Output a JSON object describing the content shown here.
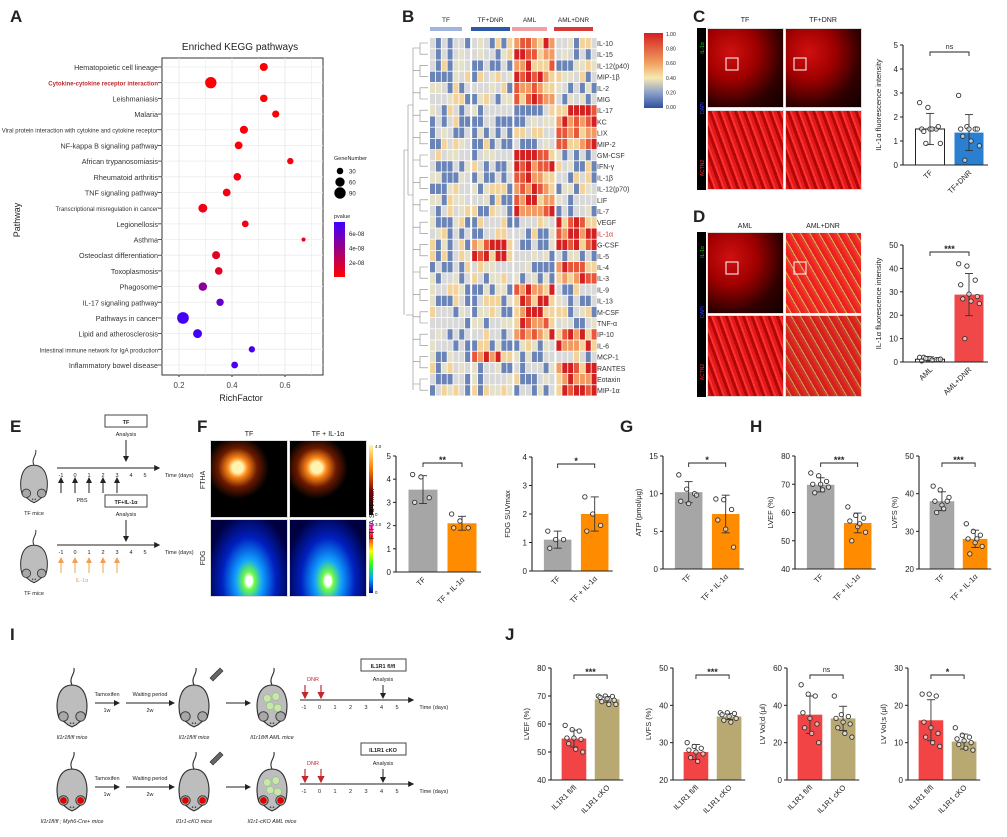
{
  "panel_labels": [
    "A",
    "B",
    "C",
    "D",
    "E",
    "F",
    "G",
    "H",
    "I",
    "J"
  ],
  "chart_data": [
    {
      "id": "A",
      "type": "scatter",
      "title": "Enriched KEGG pathways",
      "xlabel": "RichFactor",
      "ylabel": "Pathway",
      "xlim": [
        0.15,
        0.75
      ],
      "xticks": [
        "0.2",
        "0.4",
        "0.6"
      ],
      "grid": true,
      "highlight_color": "#c0282d",
      "size_legend": {
        "title": "GeneNumber",
        "values": [
          "30",
          "60",
          "90"
        ]
      },
      "color_legend": {
        "title": "pvalue",
        "ticks": [
          "6e-08",
          "4e-08",
          "2e-08"
        ],
        "low_color": "#ff0000",
        "high_color": "#3c00ff"
      },
      "legend_placement": "right",
      "points": [
        {
          "pathway": "Hematopoietic cell lineage",
          "rich": 0.52,
          "genes": 45,
          "p": 1e-09
        },
        {
          "pathway": "Cytokine-cytokine receptor interaction",
          "rich": 0.32,
          "genes": 90,
          "p": 1e-09,
          "highlight": true
        },
        {
          "pathway": "Leishmaniasis",
          "rich": 0.52,
          "genes": 40,
          "p": 1e-09
        },
        {
          "pathway": "Malaria",
          "rich": 0.565,
          "genes": 36,
          "p": 2e-09
        },
        {
          "pathway": "Viral protein interaction with cytokine and cytokine receptor",
          "rich": 0.445,
          "genes": 45,
          "p": 2e-09
        },
        {
          "pathway": "NF-kappa B signaling pathway",
          "rich": 0.425,
          "genes": 42,
          "p": 2e-09
        },
        {
          "pathway": "African trypanosomiasis",
          "rich": 0.62,
          "genes": 28,
          "p": 4e-09
        },
        {
          "pathway": "Rheumatoid arthritis",
          "rich": 0.42,
          "genes": 40,
          "p": 4e-09
        },
        {
          "pathway": "TNF signaling pathway",
          "rich": 0.38,
          "genes": 42,
          "p": 5e-09
        },
        {
          "pathway": "Transcriptional misregulation in cancer",
          "rich": 0.29,
          "genes": 55,
          "p": 6e-09
        },
        {
          "pathway": "Legionellosis",
          "rich": 0.45,
          "genes": 32,
          "p": 6e-09
        },
        {
          "pathway": "Asthma",
          "rich": 0.67,
          "genes": 12,
          "p": 8e-09
        },
        {
          "pathway": "Osteoclast differentiation",
          "rich": 0.34,
          "genes": 45,
          "p": 1e-08
        },
        {
          "pathway": "Toxoplasmosis",
          "rich": 0.35,
          "genes": 40,
          "p": 1.2e-08
        },
        {
          "pathway": "Phagosome",
          "rich": 0.29,
          "genes": 50,
          "p": 4.5e-08
        },
        {
          "pathway": "IL-17 signaling pathway",
          "rich": 0.355,
          "genes": 38,
          "p": 6e-08
        },
        {
          "pathway": "Pathways in cancer",
          "rich": 0.215,
          "genes": 95,
          "p": 7.2e-08
        },
        {
          "pathway": "Lipid and atherosclerosis",
          "rich": 0.27,
          "genes": 55,
          "p": 7.2e-08
        },
        {
          "pathway": "Intestinal immune network for IgA production",
          "rich": 0.475,
          "genes": 28,
          "p": 7.2e-08
        },
        {
          "pathway": "Inflammatory bowel disease",
          "rich": 0.41,
          "genes": 32,
          "p": 7e-08
        }
      ]
    },
    {
      "id": "B",
      "type": "heatmap",
      "groups": [
        {
          "name": "TF",
          "color": "#9fb4de"
        },
        {
          "name": "TF+DNR",
          "color": "#2e58a8"
        },
        {
          "name": "AML",
          "color": "#eea0a0"
        },
        {
          "name": "AML+DNR",
          "color": "#d83a3a"
        }
      ],
      "colorbar_ticks": [
        "1.00",
        "0.80",
        "0.60",
        "0.40",
        "0.20",
        "0.00"
      ],
      "highlight_row": "IL-1α",
      "highlight_color": "#d03030",
      "rows": [
        {
          "name": "IL-10",
          "elevated_in": [
            "AML"
          ]
        },
        {
          "name": "IL-15",
          "elevated_in": [
            "AML"
          ]
        },
        {
          "name": "IL-12(p40)",
          "elevated_in": [
            "AML"
          ]
        },
        {
          "name": "MIP-1β",
          "elevated_in": [
            "AML"
          ]
        },
        {
          "name": "IL-2",
          "elevated_in": [
            "AML"
          ]
        },
        {
          "name": "MIG",
          "elevated_in": [
            "AML"
          ]
        },
        {
          "name": "IL-17",
          "elevated_in": [
            "AML+DNR"
          ]
        },
        {
          "name": "KC",
          "elevated_in": [
            "AML+DNR"
          ]
        },
        {
          "name": "LIX",
          "elevated_in": [
            "AML+DNR"
          ]
        },
        {
          "name": "MIP-2",
          "elevated_in": [
            "AML+DNR"
          ]
        },
        {
          "name": "GM-CSF",
          "elevated_in": [
            "AML"
          ]
        },
        {
          "name": "IFN-γ",
          "elevated_in": [
            "AML"
          ]
        },
        {
          "name": "IL-1β",
          "elevated_in": [
            "AML"
          ]
        },
        {
          "name": "IL-12(p70)",
          "elevated_in": [
            "AML"
          ]
        },
        {
          "name": "LIF",
          "elevated_in": [
            "AML"
          ]
        },
        {
          "name": "IL-7",
          "elevated_in": [
            "AML"
          ]
        },
        {
          "name": "VEGF",
          "elevated_in": [
            "AML+DNR"
          ]
        },
        {
          "name": "IL-1α",
          "elevated_in": [
            "AML+DNR"
          ]
        },
        {
          "name": "G-CSF",
          "elevated_in": [
            "TF+DNR",
            "AML+DNR"
          ]
        },
        {
          "name": "IL-5",
          "elevated_in": [
            "TF+DNR"
          ]
        },
        {
          "name": "IL-4",
          "elevated_in": [
            "AML+DNR"
          ]
        },
        {
          "name": "IL-3",
          "elevated_in": [
            "AML+DNR"
          ]
        },
        {
          "name": "IL-9",
          "elevated_in": [
            "AML"
          ]
        },
        {
          "name": "IL-13",
          "elevated_in": [
            "AML"
          ]
        },
        {
          "name": "M-CSF",
          "elevated_in": [
            "AML"
          ]
        },
        {
          "name": "TNF-α",
          "elevated_in": [
            "AML"
          ]
        },
        {
          "name": "IP-10",
          "elevated_in": [
            "AML",
            "AML+DNR"
          ]
        },
        {
          "name": "IL-6",
          "elevated_in": [
            "AML+DNR"
          ]
        },
        {
          "name": "MCP-1",
          "elevated_in": [
            "TF+DNR"
          ]
        },
        {
          "name": "RANTES",
          "elevated_in": [
            "AML+DNR"
          ]
        },
        {
          "name": "Eotaxin",
          "elevated_in": [
            "AML+DNR"
          ]
        },
        {
          "name": "MIP-1α",
          "elevated_in": [
            "AML+DNR"
          ]
        }
      ]
    },
    {
      "id": "C",
      "type": "bar",
      "ylabel": "IL-1α fluorescence intensity",
      "ylim": [
        0,
        5
      ],
      "yticks": [
        "0",
        "1",
        "2",
        "3",
        "4",
        "5"
      ],
      "sig": "ns",
      "categories": [
        "TF",
        "TF+DNR"
      ],
      "bars": [
        {
          "mean": 1.5,
          "sd": 0.65,
          "color": "#ffffff",
          "points": [
            2.6,
            2.4,
            1.5,
            1.5,
            1.5,
            1.6,
            1.4,
            1.5,
            0.9,
            0.9
          ]
        },
        {
          "mean": 1.35,
          "sd": 0.75,
          "color": "#2a7fd0",
          "points": [
            2.9,
            1.6,
            1.5,
            1.5,
            1.5,
            1.5,
            1.2,
            1.0,
            0.8,
            0.2
          ]
        }
      ]
    },
    {
      "id": "D",
      "type": "bar",
      "ylabel": "IL-1α fluorescence intensity",
      "ylim": [
        0,
        50
      ],
      "yticks": [
        "0",
        "10",
        "20",
        "30",
        "40",
        "50"
      ],
      "sig": "***",
      "categories": [
        "AML",
        "AML+DNR"
      ],
      "bars": [
        {
          "mean": 1.2,
          "sd": 1.0,
          "color": "#ffffff",
          "points": [
            2,
            1.5,
            1,
            0.5,
            1.5,
            1,
            2,
            0.8,
            1.2,
            1.5
          ]
        },
        {
          "mean": 28.8,
          "sd": 9,
          "color": "#f04848",
          "points": [
            42,
            41,
            35,
            33,
            29,
            28,
            27,
            26,
            25,
            10
          ]
        }
      ]
    },
    {
      "id": "F1",
      "type": "bar",
      "ylabel": "FTHA SUVmax",
      "ylim": [
        0,
        5
      ],
      "yticks": [
        "0",
        "1",
        "2",
        "3",
        "4",
        "5"
      ],
      "sig": "**",
      "categories": [
        "TF",
        "TF + IL-1α"
      ],
      "bars": [
        {
          "mean": 3.55,
          "sd": 0.6,
          "color": "#a6a6a6",
          "points": [
            4.2,
            4.1,
            3.2,
            3.0
          ]
        },
        {
          "mean": 2.1,
          "sd": 0.3,
          "color": "#ff8c00",
          "points": [
            2.5,
            2.2,
            1.9,
            1.9
          ]
        }
      ]
    },
    {
      "id": "F2",
      "type": "bar",
      "ylabel": "FDG SUVmax",
      "ylim": [
        0,
        4
      ],
      "yticks": [
        "0",
        "1",
        "2",
        "3",
        "4"
      ],
      "sig": "*",
      "categories": [
        "TF",
        "TF + IL-1α"
      ],
      "bars": [
        {
          "mean": 1.1,
          "sd": 0.3,
          "color": "#a6a6a6",
          "points": [
            1.4,
            1.1,
            1.1,
            0.8
          ]
        },
        {
          "mean": 2.0,
          "sd": 0.6,
          "color": "#ff8c00",
          "points": [
            2.6,
            2.0,
            1.6,
            1.4
          ]
        }
      ]
    },
    {
      "id": "G",
      "type": "bar",
      "ylabel": "ATP (pmol/μg)",
      "ylim": [
        0,
        15
      ],
      "yticks": [
        "0",
        "5",
        "10",
        "15"
      ],
      "sig": "*",
      "categories": [
        "TF",
        "TF + IL-1α"
      ],
      "bars": [
        {
          "mean": 10.2,
          "sd": 1.4,
          "color": "#a6a6a6",
          "points": [
            12.5,
            10.6,
            10.0,
            9.0,
            8.7,
            9.8
          ]
        },
        {
          "mean": 7.3,
          "sd": 2.5,
          "color": "#ff8c00",
          "points": [
            9.3,
            9.2,
            7.9,
            6.5,
            5.3,
            2.9
          ]
        }
      ]
    },
    {
      "id": "H1",
      "type": "bar",
      "ylabel": "LVEF (%)",
      "ylim": [
        40,
        80
      ],
      "yticks": [
        "40",
        "50",
        "60",
        "70",
        "80"
      ],
      "sig": "***",
      "categories": [
        "TF",
        "TF + IL-1α"
      ],
      "bars": [
        {
          "mean": 69.8,
          "sd": 2.5,
          "color": "#a6a6a6",
          "points": [
            74,
            73,
            71,
            70,
            70,
            69,
            67,
            68
          ]
        },
        {
          "mean": 56.3,
          "sd": 3.5,
          "color": "#ff8c00",
          "points": [
            62,
            59,
            58,
            57,
            55,
            53,
            50,
            56
          ]
        }
      ]
    },
    {
      "id": "H2",
      "type": "bar",
      "ylabel": "LVFS (%)",
      "ylim": [
        20,
        50
      ],
      "yticks": [
        "20",
        "30",
        "40",
        "50"
      ],
      "sig": "***",
      "categories": [
        "TF",
        "TF + IL-1α"
      ],
      "bars": [
        {
          "mean": 38,
          "sd": 2.5,
          "color": "#a6a6a6",
          "points": [
            42,
            41,
            38,
            38,
            37,
            39,
            35,
            36
          ]
        },
        {
          "mean": 28,
          "sd": 2.3,
          "color": "#ff8c00",
          "points": [
            32,
            30,
            29,
            28,
            27,
            26,
            24,
            28
          ]
        }
      ]
    },
    {
      "id": "J1",
      "type": "bar",
      "ylabel": "LVEF (%)",
      "ylim": [
        40,
        80
      ],
      "yticks": [
        "40",
        "50",
        "60",
        "70",
        "80"
      ],
      "sig": "***",
      "categories": [
        "IL1R1 fl/fl",
        "IL1R1 cKO"
      ],
      "bars": [
        {
          "mean": 54.8,
          "sd": 3,
          "color": "#f24444",
          "points": [
            59.5,
            58,
            57.5,
            55,
            55,
            54.5,
            53,
            51,
            50
          ]
        },
        {
          "mean": 68.8,
          "sd": 1,
          "color": "#b8a872",
          "points": [
            70,
            70,
            69.8,
            69.5,
            69,
            68.5,
            68,
            67,
            67
          ]
        }
      ]
    },
    {
      "id": "J2",
      "type": "bar",
      "ylabel": "LVFS (%)",
      "ylim": [
        20,
        50
      ],
      "yticks": [
        "20",
        "30",
        "40",
        "50"
      ],
      "sig": "***",
      "categories": [
        "IL1R1 fl/fl",
        "IL1R1 cKO"
      ],
      "bars": [
        {
          "mean": 27.5,
          "sd": 2,
          "color": "#f24444",
          "points": [
            30,
            29,
            28.5,
            28,
            27.5,
            27,
            26,
            25
          ]
        },
        {
          "mean": 37,
          "sd": 0.8,
          "color": "#b8a872",
          "points": [
            38,
            38,
            37.8,
            37.5,
            37,
            36.5,
            36,
            35.5
          ]
        }
      ]
    },
    {
      "id": "J3",
      "type": "bar",
      "ylabel": "LV Vol;d (μl)",
      "ylim": [
        0,
        60
      ],
      "yticks": [
        "0",
        "20",
        "40",
        "60"
      ],
      "sig": "ns",
      "categories": [
        "IL1R1 fl/fl",
        "IL1R1 cKO"
      ],
      "bars": [
        {
          "mean": 35,
          "sd": 10,
          "color": "#f24444",
          "points": [
            51,
            46,
            45,
            36,
            33,
            30,
            28,
            25,
            20
          ]
        },
        {
          "mean": 33,
          "sd": 6.5,
          "color": "#b8a872",
          "points": [
            45,
            35,
            34,
            33,
            31,
            30,
            28,
            25,
            23
          ]
        }
      ]
    },
    {
      "id": "J4",
      "type": "bar",
      "ylabel": "LV Vol;s (μl)",
      "ylim": [
        0,
        30
      ],
      "yticks": [
        "0",
        "10",
        "20",
        "30"
      ],
      "sig": "*",
      "categories": [
        "IL1R1 fl/fl",
        "IL1R1 cKO"
      ],
      "bars": [
        {
          "mean": 16,
          "sd": 5.5,
          "color": "#f24444",
          "points": [
            23,
            23,
            22.5,
            15.5,
            14,
            12.5,
            11.5,
            10,
            9
          ]
        },
        {
          "mean": 10.3,
          "sd": 2,
          "color": "#b8a872",
          "points": [
            14,
            12,
            11.5,
            11,
            10.5,
            10,
            9.5,
            8.5,
            8
          ]
        }
      ]
    }
  ],
  "panel_c": {
    "images": [
      "TF",
      "TF+DNR"
    ],
    "stains": [
      "IL-1α",
      "DAPI",
      "ACTN2"
    ]
  },
  "panel_d": {
    "images": [
      "AML",
      "AML+DNR"
    ],
    "stains": [
      "IL-1α",
      "DAPI",
      "ACTN2"
    ]
  },
  "panel_e": {
    "mouse_label": "TF mice",
    "analysis": "Analysis",
    "time_label": "Time (days)",
    "days": [
      "-1",
      "0",
      "1",
      "2",
      "3",
      "4",
      "5"
    ],
    "rows": [
      {
        "box": "TF",
        "injection": "PBS",
        "color": "#222222"
      },
      {
        "box": "TF+IL-1α",
        "injection": "IL-1α",
        "color": "#f0a050"
      }
    ]
  },
  "panel_f": {
    "columns": [
      "TF",
      "TF + IL-1α"
    ],
    "rows": [
      "FTHA",
      "FDG"
    ],
    "scales": [
      {
        "max": "4.0",
        "min": "0"
      },
      {
        "max": "3.0",
        "min": "0"
      }
    ]
  },
  "panel_i": {
    "dnr": "DNR",
    "dnr_color": "#c0282d",
    "analysis": "Analysis",
    "time_label": "Time (days)",
    "days": [
      "-1",
      "0",
      "1",
      "2",
      "3",
      "4",
      "5"
    ],
    "step1": "Tamoxifen",
    "step1_dur": "1w",
    "step2": "Waiting period",
    "step2_dur": "2w",
    "rows": [
      {
        "box": "IL1R1 fl/fl",
        "m1": "Il1r1fl/fl mice",
        "m2": "Il1r1fl/fl mice",
        "m3": "Il1r1fl/fl AML mice",
        "red_eyes": false
      },
      {
        "box": "IL1R1 cKO",
        "m1": "Il1r1fl/fl ; Myh6-Cre+ mice",
        "m2": "Il1r1-cKO mice",
        "m3": "Il1r1-cKO AML mice",
        "red_eyes": true
      }
    ]
  }
}
